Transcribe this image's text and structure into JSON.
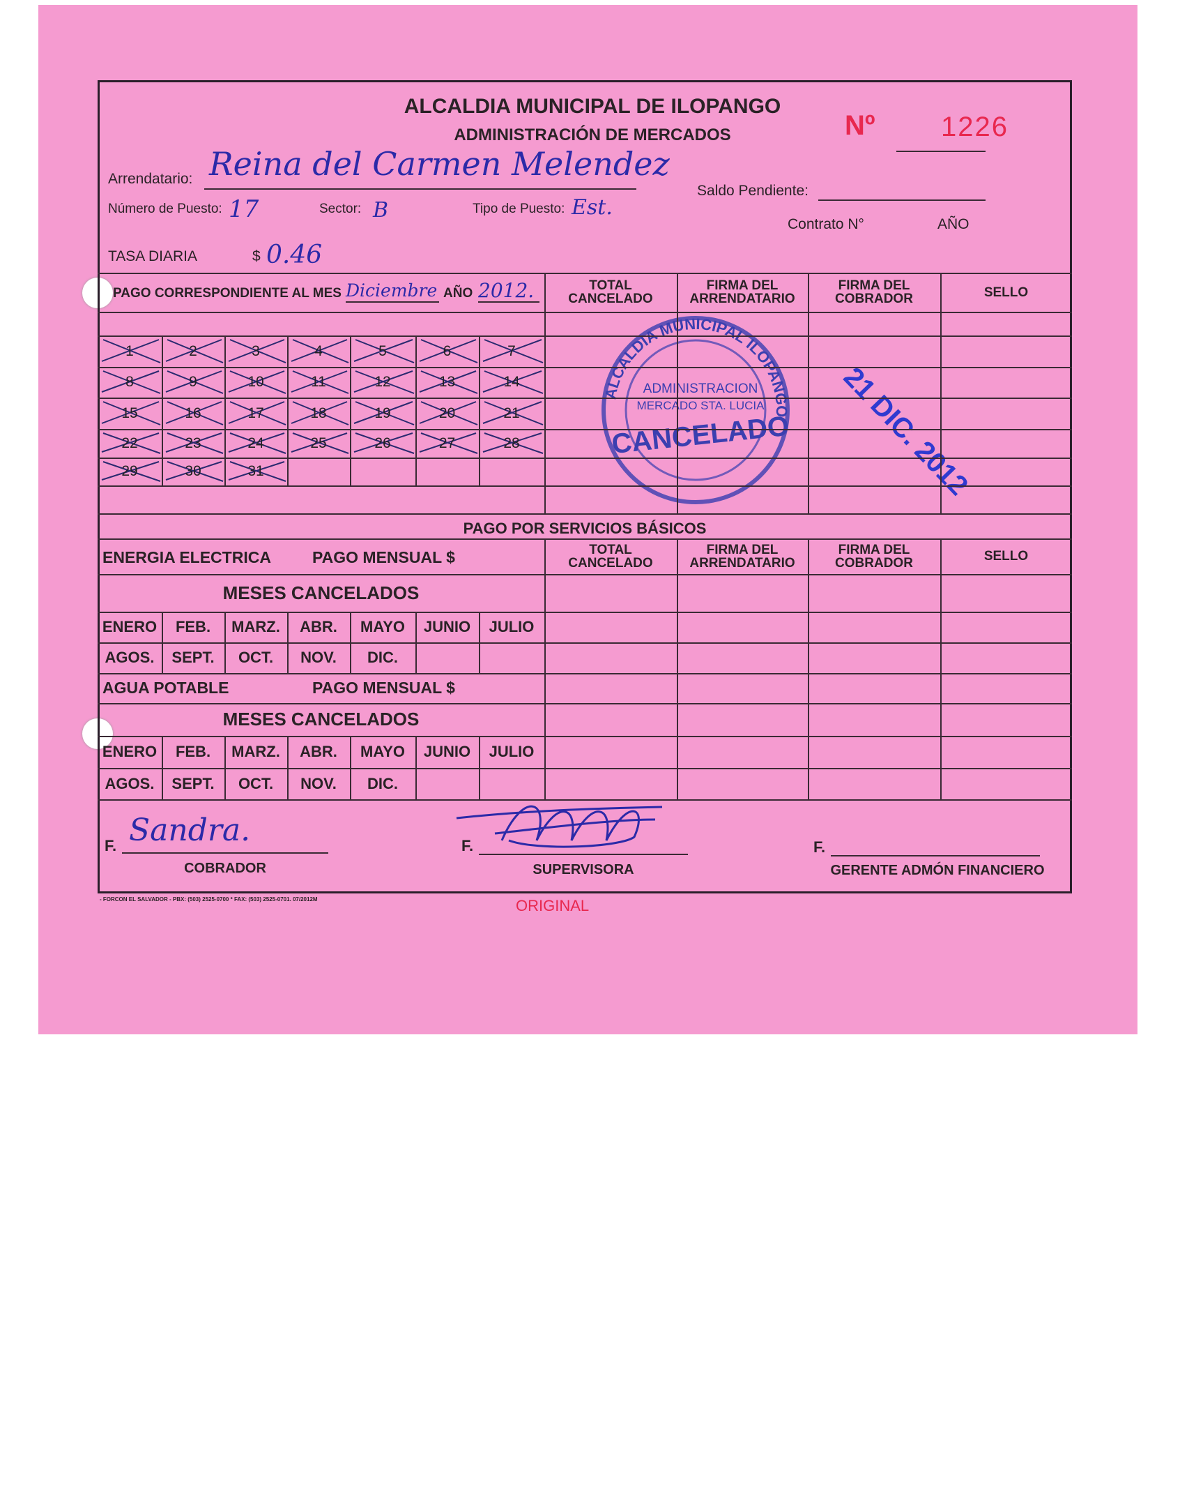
{
  "header": {
    "title": "ALCALDIA MUNICIPAL DE ILOPANGO",
    "subtitle": "ADMINISTRACIÓN DE MERCADOS",
    "number_label": "Nº",
    "number": "1226"
  },
  "fields": {
    "arrendatario_label": "Arrendatario:",
    "arrendatario": "Reina del Carmen Melendez",
    "puesto_label": "Número de Puesto:",
    "puesto": "17",
    "sector_label": "Sector:",
    "sector": "B",
    "tipo_label": "Tipo de Puesto:",
    "tipo": "Est.",
    "saldo_label": "Saldo Pendiente:",
    "contrato_label": "Contrato N°",
    "anio_label": "AÑO",
    "tasa_label": "TASA DIARIA",
    "tasa_currency": "$",
    "tasa": "0.46"
  },
  "payment": {
    "mes_label": "PAGO CORRESPONDIENTE AL MES",
    "mes": "Diciembre",
    "anio_label": "AÑO",
    "anio": "2012.",
    "columns": [
      "TOTAL CANCELADO",
      "FIRMA DEL ARRENDATARIO",
      "FIRMA DEL COBRADOR",
      "SELLO"
    ],
    "days": [
      "1",
      "2",
      "3",
      "4",
      "5",
      "6",
      "7",
      "8",
      "9",
      "10",
      "11",
      "12",
      "13",
      "14",
      "15",
      "16",
      "17",
      "18",
      "19",
      "20",
      "21",
      "22",
      "23",
      "24",
      "25",
      "26",
      "27",
      "28",
      "29",
      "30",
      "31"
    ]
  },
  "stamp": {
    "ring_text": "ALCALDIA MUNICIPAL ILOPANGO",
    "inner_1": "ADMINISTRACION",
    "inner_2": "MERCADO STA. LUCIA",
    "status": "CANCELADO",
    "date": "21 DIC. 2012"
  },
  "services": {
    "title": "PAGO POR SERVICIOS BÁSICOS",
    "energia": "ENERGIA ELECTRICA",
    "agua": "AGUA POTABLE",
    "pago_mensual": "PAGO MENSUAL $",
    "meses_cancelados": "MESES CANCELADOS",
    "months_row1": [
      "ENERO",
      "FEB.",
      "MARZ.",
      "ABR.",
      "MAYO",
      "JUNIO",
      "JULIO"
    ],
    "months_row2": [
      "AGOS.",
      "SEPT.",
      "OCT.",
      "NOV.",
      "DIC."
    ]
  },
  "signatures": {
    "f": "F.",
    "cobrador_sig": "Sandra.",
    "cobrador": "COBRADOR",
    "supervisora": "SUPERVISORA",
    "gerente": "GERENTE ADMÓN FINANCIERO"
  },
  "footer": {
    "printer": "- FORCON EL SALVADOR - PBX: (503) 2525-0700 * FAX: (503) 2525-0701. 07/2012M",
    "copy": "ORIGINAL"
  },
  "colors": {
    "paper": "#f59bd0",
    "ink": "#2b2aa8",
    "red": "#e8284f"
  }
}
